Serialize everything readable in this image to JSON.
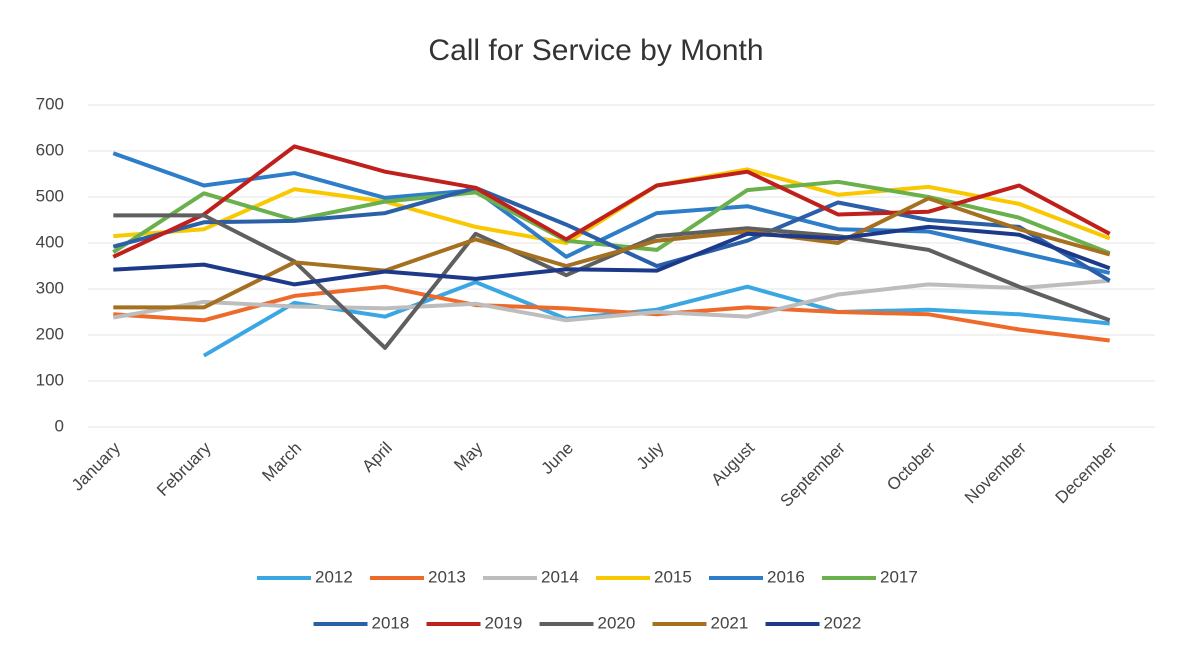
{
  "chart_data": {
    "type": "line",
    "title": "Call for Service by Month",
    "categories": [
      "January",
      "February",
      "March",
      "April",
      "May",
      "June",
      "July",
      "August",
      "September",
      "October",
      "November",
      "December"
    ],
    "ylim": [
      0,
      700
    ],
    "yticks": [
      0,
      100,
      200,
      300,
      400,
      500,
      600,
      700
    ],
    "grid": true,
    "legend": "bottom",
    "series": [
      {
        "name": "2012",
        "color": "#3aa7e3",
        "values": [
          null,
          155,
          270,
          240,
          315,
          235,
          255,
          305,
          250,
          255,
          245,
          225
        ]
      },
      {
        "name": "2013",
        "color": "#ee6a2a",
        "values": [
          245,
          232,
          285,
          305,
          265,
          258,
          245,
          260,
          250,
          245,
          212,
          188
        ]
      },
      {
        "name": "2014",
        "color": "#bdbdbd",
        "values": [
          238,
          272,
          262,
          258,
          268,
          232,
          250,
          240,
          288,
          310,
          302,
          318
        ]
      },
      {
        "name": "2015",
        "color": "#f9c800",
        "values": [
          415,
          430,
          517,
          490,
          435,
          400,
          525,
          560,
          505,
          522,
          485,
          410
        ]
      },
      {
        "name": "2016",
        "color": "#2e7dc9",
        "values": [
          595,
          525,
          552,
          498,
          515,
          370,
          465,
          480,
          430,
          425,
          380,
          335
        ]
      },
      {
        "name": "2017",
        "color": "#6ab04c",
        "values": [
          380,
          508,
          450,
          490,
          510,
          405,
          385,
          515,
          533,
          500,
          455,
          378
        ]
      },
      {
        "name": "2018",
        "color": "#2b5fa8",
        "values": [
          392,
          445,
          448,
          465,
          520,
          440,
          350,
          405,
          488,
          450,
          435,
          318
        ]
      },
      {
        "name": "2019",
        "color": "#c0201b",
        "values": [
          370,
          462,
          610,
          555,
          520,
          408,
          525,
          555,
          462,
          468,
          525,
          420
        ]
      },
      {
        "name": "2020",
        "color": "#5f5f5f",
        "values": [
          460,
          460,
          360,
          172,
          420,
          330,
          415,
          432,
          415,
          385,
          305,
          232
        ]
      },
      {
        "name": "2021",
        "color": "#a5701f",
        "values": [
          260,
          260,
          358,
          340,
          408,
          350,
          405,
          425,
          400,
          497,
          430,
          375
        ]
      },
      {
        "name": "2022",
        "color": "#1d3a8a",
        "values": [
          342,
          353,
          310,
          338,
          322,
          343,
          340,
          420,
          410,
          435,
          418,
          345
        ]
      }
    ]
  }
}
